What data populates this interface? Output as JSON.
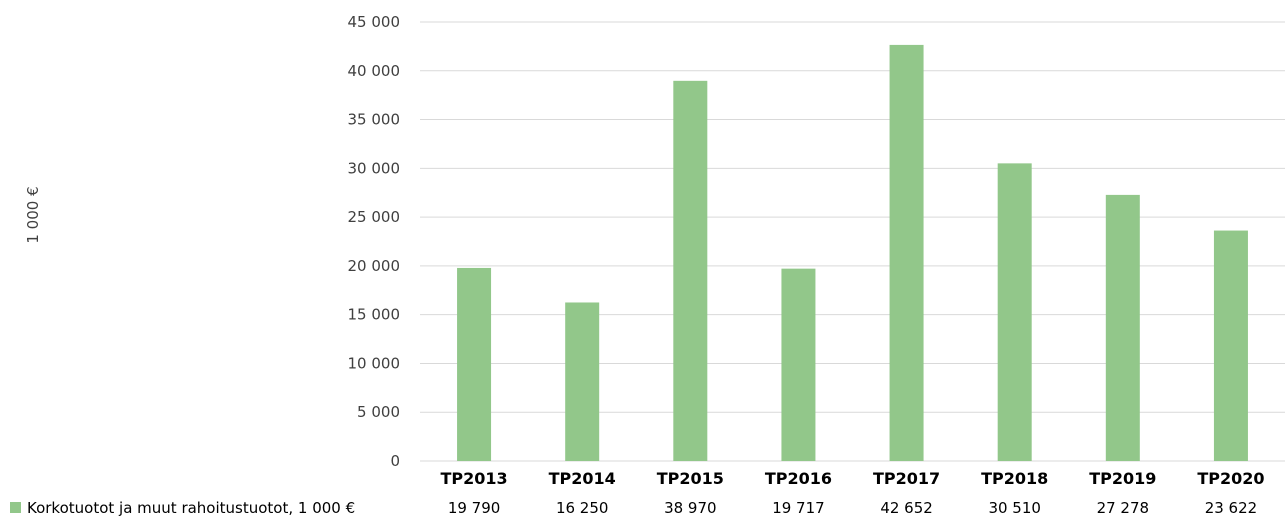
{
  "chart_data": {
    "type": "bar",
    "ylabel": "1 000 €",
    "categories": [
      "TP2013",
      "TP2014",
      "TP2015",
      "TP2016",
      "TP2017",
      "TP2018",
      "TP2019",
      "TP2020"
    ],
    "series": [
      {
        "name": "Korkotuotot ja muut rahoitustuotot, 1 000 €",
        "values": [
          19790,
          16250,
          38970,
          19717,
          42652,
          30510,
          27278,
          23622
        ],
        "value_labels": [
          "19 790",
          "16 250",
          "38 970",
          "19 717",
          "42 652",
          "30 510",
          "27 278",
          "23 622"
        ]
      }
    ],
    "ylim": [
      0,
      45000
    ],
    "ytick_values": [
      0,
      5000,
      10000,
      15000,
      20000,
      25000,
      30000,
      35000,
      40000,
      45000
    ],
    "ytick_labels": [
      "0",
      "5 000",
      "10 000",
      "15 000",
      "20 000",
      "25 000",
      "30 000",
      "35 000",
      "40 000",
      "45 000"
    ],
    "grid": true,
    "legend_placement": "bottom-left data table",
    "bar_color": "#92c78a",
    "grid_color": "#d9d9d9"
  }
}
